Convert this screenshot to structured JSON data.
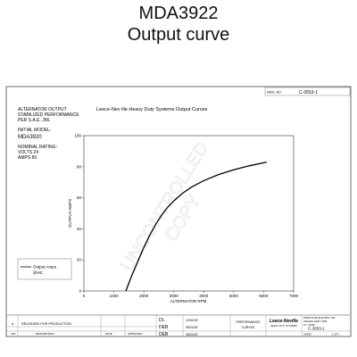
{
  "page_title": "MDA3922",
  "page_subtitle": "Output curve",
  "sheet": {
    "top_number_label": "DWG. NO.",
    "top_number": "C-3553-1",
    "header_lines": [
      "ALTERNATOR OUTPUT",
      "STABILIZED PERFORMANCE",
      "PER S.A.E. J56."
    ],
    "initial_model_label": "INITIAL MODEL:",
    "initial_model": "MDA3920",
    "nominal_rating_label": "NOMINAL RATING:",
    "volts": "VOLTS 24",
    "amps": "AMPS 80",
    "watermark_line1": "UNCONTROLLED",
    "watermark_line2": "COPY",
    "title_block": {
      "released": "RELEASED FOR PRODUCTION",
      "description_label": "DESCRIPTION",
      "rev": "A",
      "ltr_label": "LTR",
      "date_label": "DATE",
      "approved_label": "APPROVED",
      "initials": [
        "DL",
        "DEB",
        "DEB"
      ],
      "dates": [
        "10/31/02",
        "08/20/02",
        "08/20/02"
      ],
      "part_name": "PERFORMANCE",
      "part_sub": "CURVES",
      "logo_main": "Leece-Neville",
      "logo_sub": "HEAVY DUTY SYSTEMS",
      "company_lines": [
        "PRESTOLITE ELECTRIC, INC.",
        "ARCADE, NEW YORK",
        "N.Y. 14009"
      ],
      "number": "C-3553-1",
      "sheet_label": "SHEET",
      "sheet_value": "1 OF 1"
    }
  },
  "chart_data": {
    "type": "line",
    "title": "Leece-Nev   ille Heavy Duty Systems Output Curves",
    "xlabel": "ALTERNATOR RPM",
    "ylabel": "OUTPUT AMPS",
    "xlim": [
      0,
      7000
    ],
    "ylim": [
      0,
      100
    ],
    "x_ticks": [
      0,
      1000,
      2000,
      3000,
      4000,
      5000,
      6000,
      7000
    ],
    "y_ticks": [
      0,
      20,
      40,
      60,
      80,
      100
    ],
    "grid": false,
    "legend_position": "left-lower",
    "legend": [
      "Output Amps",
      "@HC"
    ],
    "series": [
      {
        "name": "Output Amps",
        "x": [
          1400,
          1600,
          1800,
          2000,
          2200,
          2400,
          2600,
          2800,
          3000,
          3300,
          3600,
          4000,
          4500,
          5000,
          5500,
          6100
        ],
        "y": [
          0,
          10,
          19,
          28,
          36,
          43,
          49,
          54,
          58,
          63,
          67,
          71,
          75,
          78,
          80.5,
          83
        ]
      }
    ]
  }
}
